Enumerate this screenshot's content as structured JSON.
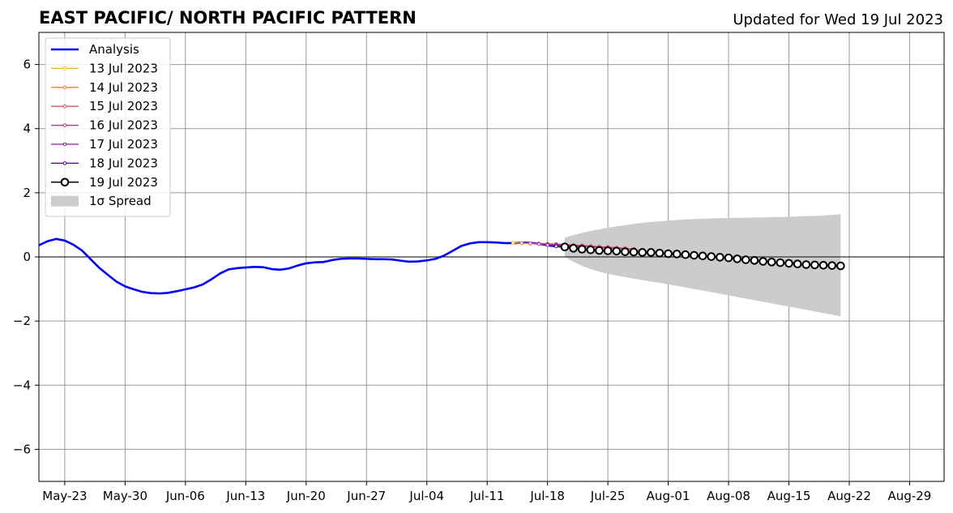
{
  "chart_data": {
    "type": "line",
    "title": "EAST PACIFIC/ NORTH PACIFIC PATTERN",
    "subtitle": "Updated for Wed 19 Jul 2023",
    "xlabel": "",
    "ylabel": "",
    "x_range": [
      "2023-05-20",
      "2023-09-02"
    ],
    "ylim": [
      -7,
      7
    ],
    "x_ticks": [
      {
        "date": "2023-05-23",
        "label": "May-23"
      },
      {
        "date": "2023-05-30",
        "label": "May-30"
      },
      {
        "date": "2023-06-06",
        "label": "Jun-06"
      },
      {
        "date": "2023-06-13",
        "label": "Jun-13"
      },
      {
        "date": "2023-06-20",
        "label": "Jun-20"
      },
      {
        "date": "2023-06-27",
        "label": "Jun-27"
      },
      {
        "date": "2023-07-04",
        "label": "Jul-04"
      },
      {
        "date": "2023-07-11",
        "label": "Jul-11"
      },
      {
        "date": "2023-07-18",
        "label": "Jul-18"
      },
      {
        "date": "2023-07-25",
        "label": "Jul-25"
      },
      {
        "date": "2023-08-01",
        "label": "Aug-01"
      },
      {
        "date": "2023-08-08",
        "label": "Aug-08"
      },
      {
        "date": "2023-08-15",
        "label": "Aug-15"
      },
      {
        "date": "2023-08-22",
        "label": "Aug-22"
      },
      {
        "date": "2023-08-29",
        "label": "Aug-29"
      }
    ],
    "y_ticks": [
      {
        "value": 6,
        "label": "6"
      },
      {
        "value": 4,
        "label": "4"
      },
      {
        "value": 2,
        "label": "2"
      },
      {
        "value": 0,
        "label": "0"
      },
      {
        "value": -2,
        "label": "−2"
      },
      {
        "value": -4,
        "label": "−4"
      },
      {
        "value": -6,
        "label": "−6"
      }
    ],
    "grid": true,
    "legend_position": "top-left",
    "analysis": {
      "name": "Analysis",
      "color": "#0000ff",
      "start_date": "2023-05-20",
      "values": [
        0.36,
        0.49,
        0.56,
        0.51,
        0.38,
        0.2,
        -0.07,
        -0.34,
        -0.56,
        -0.77,
        -0.92,
        -1.01,
        -1.09,
        -1.13,
        -1.14,
        -1.12,
        -1.07,
        -1.01,
        -0.95,
        -0.86,
        -0.7,
        -0.52,
        -0.39,
        -0.35,
        -0.33,
        -0.31,
        -0.32,
        -0.38,
        -0.4,
        -0.36,
        -0.27,
        -0.2,
        -0.17,
        -0.16,
        -0.1,
        -0.06,
        -0.05,
        -0.05,
        -0.06,
        -0.07,
        -0.07,
        -0.08,
        -0.12,
        -0.15,
        -0.14,
        -0.11,
        -0.06,
        0.04,
        0.19,
        0.34,
        0.42,
        0.46,
        0.46,
        0.45,
        0.43,
        0.43,
        0.44,
        0.44,
        0.41,
        0.36,
        0.33,
        0.32
      ]
    },
    "forecasts": [
      {
        "name": "13 Jul 2023",
        "color": "#f5b120",
        "start_date": "2023-07-14",
        "values": [
          0.44,
          0.43,
          0.42,
          0.41,
          0.4,
          0.39,
          0.37,
          0.35,
          0.33,
          0.31,
          0.29,
          0.27,
          0.25,
          0.23,
          0.21,
          0.19,
          0.17,
          0.15,
          0.13,
          0.11,
          0.09,
          0.07,
          0.05,
          0.02,
          0.0,
          -0.03,
          -0.06,
          -0.09
        ]
      },
      {
        "name": "14 Jul 2023",
        "color": "#ee7b3d",
        "start_date": "2023-07-15",
        "values": [
          0.43,
          0.42,
          0.41,
          0.4,
          0.39,
          0.37,
          0.35,
          0.33,
          0.31,
          0.29,
          0.27,
          0.25,
          0.23,
          0.21,
          0.19,
          0.17,
          0.15,
          0.13,
          0.11,
          0.09,
          0.07,
          0.05,
          0.03,
          0.01,
          -0.02
        ]
      },
      {
        "name": "15 Jul 2023",
        "color": "#dc5163",
        "start_date": "2023-07-16",
        "values": [
          0.42,
          0.42,
          0.41,
          0.4,
          0.39,
          0.37,
          0.36,
          0.34,
          0.32,
          0.31,
          0.29,
          0.27,
          0.25
        ]
      },
      {
        "name": "16 Jul 2023",
        "color": "#b83680",
        "start_date": "2023-07-17",
        "values": [
          0.4,
          0.39,
          0.38,
          0.37,
          0.35,
          0.34,
          0.32,
          0.31,
          0.29,
          0.27,
          0.25
        ]
      },
      {
        "name": "17 Jul 2023",
        "color": "#8c1f9c",
        "start_date": "2023-07-18",
        "values": [
          0.37,
          0.36,
          0.35,
          0.33,
          0.31
        ]
      },
      {
        "name": "18 Jul 2023",
        "color": "#4a0c6b",
        "start_date": "2023-07-19",
        "values": [
          0.33,
          0.33,
          0.31
        ]
      }
    ],
    "forecast_current": {
      "name": "19 Jul 2023",
      "color": "#000000",
      "marker_fill": "#ffffff",
      "start_date": "2023-07-20",
      "values": [
        0.31,
        0.27,
        0.24,
        0.22,
        0.2,
        0.19,
        0.18,
        0.16,
        0.15,
        0.14,
        0.14,
        0.12,
        0.1,
        0.09,
        0.07,
        0.05,
        0.03,
        0.01,
        -0.01,
        -0.03,
        -0.06,
        -0.09,
        -0.11,
        -0.14,
        -0.16,
        -0.18,
        -0.2,
        -0.22,
        -0.24,
        -0.25,
        -0.26,
        -0.27,
        -0.28
      ]
    },
    "spread": {
      "name": "1σ Spread",
      "color": "#cccccc",
      "start_date": "2023-07-20",
      "upper": [
        0.6,
        0.68,
        0.75,
        0.81,
        0.86,
        0.91,
        0.95,
        0.99,
        1.03,
        1.06,
        1.09,
        1.11,
        1.13,
        1.15,
        1.17,
        1.18,
        1.19,
        1.2,
        1.21,
        1.21,
        1.22,
        1.22,
        1.23,
        1.23,
        1.24,
        1.24,
        1.25,
        1.26,
        1.27,
        1.28,
        1.29,
        1.31,
        1.33
      ],
      "lower": [
        0.0,
        -0.15,
        -0.28,
        -0.38,
        -0.46,
        -0.53,
        -0.58,
        -0.63,
        -0.68,
        -0.72,
        -0.77,
        -0.81,
        -0.86,
        -0.9,
        -0.95,
        -1.0,
        -1.05,
        -1.1,
        -1.15,
        -1.2,
        -1.25,
        -1.3,
        -1.35,
        -1.4,
        -1.45,
        -1.5,
        -1.55,
        -1.6,
        -1.65,
        -1.7,
        -1.75,
        -1.8,
        -1.85
      ]
    }
  }
}
